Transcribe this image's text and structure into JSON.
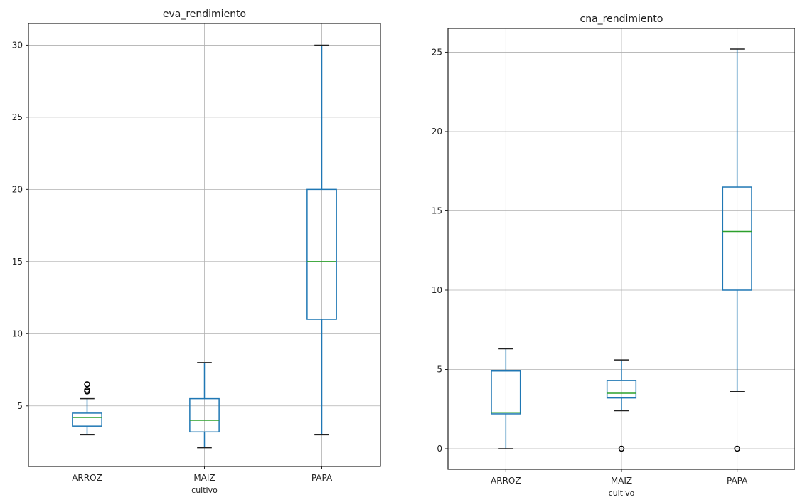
{
  "colors": {
    "box": "#1f77b4",
    "median": "#2ca02c",
    "grid": "#b0b0b0",
    "axes": "#222222",
    "outlier": "#000000"
  },
  "chart_data": [
    {
      "type": "box",
      "title": "eva_rendimiento",
      "xlabel": "cultivo",
      "ylabel": "",
      "categories": [
        "ARROZ",
        "MAIZ",
        "PAPA"
      ],
      "ylim": [
        0.8,
        31.5
      ],
      "yticks": [
        5,
        10,
        15,
        20,
        25,
        30
      ],
      "grid": true,
      "boxes": [
        {
          "category": "ARROZ",
          "whisker_low": 3.0,
          "q1": 3.6,
          "median": 4.2,
          "q3": 4.5,
          "whisker_high": 5.5,
          "outliers": [
            6.0,
            6.1,
            6.5
          ]
        },
        {
          "category": "MAIZ",
          "whisker_low": 2.1,
          "q1": 3.2,
          "median": 4.0,
          "q3": 5.5,
          "whisker_high": 8.0,
          "outliers": []
        },
        {
          "category": "PAPA",
          "whisker_low": 3.0,
          "q1": 11.0,
          "median": 15.0,
          "q3": 20.0,
          "whisker_high": 30.0,
          "outliers": []
        }
      ]
    },
    {
      "type": "box",
      "title": "cna_rendimiento",
      "xlabel": "cultivo",
      "ylabel": "",
      "categories": [
        "ARROZ",
        "MAIZ",
        "PAPA"
      ],
      "ylim": [
        -1.3,
        26.5
      ],
      "yticks": [
        0,
        5,
        10,
        15,
        20,
        25
      ],
      "grid": true,
      "boxes": [
        {
          "category": "ARROZ",
          "whisker_low": 0.0,
          "q1": 2.2,
          "median": 2.3,
          "q3": 4.9,
          "whisker_high": 6.3,
          "outliers": []
        },
        {
          "category": "MAIZ",
          "whisker_low": 2.4,
          "q1": 3.2,
          "median": 3.5,
          "q3": 4.3,
          "whisker_high": 5.6,
          "outliers": [
            0.0
          ]
        },
        {
          "category": "PAPA",
          "whisker_low": 3.6,
          "q1": 10.0,
          "median": 13.7,
          "q3": 16.5,
          "whisker_high": 25.2,
          "outliers": [
            0.0
          ]
        }
      ]
    }
  ]
}
